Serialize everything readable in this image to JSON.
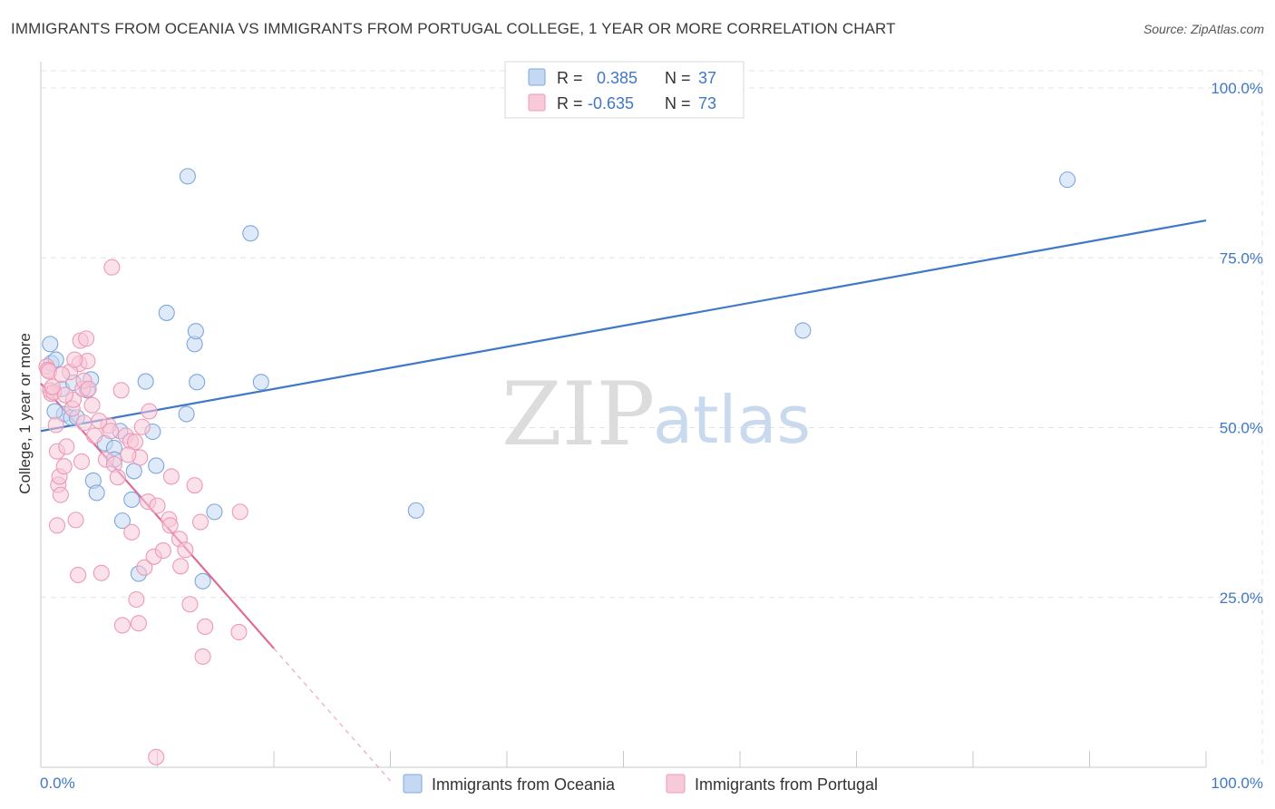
{
  "title": "IMMIGRANTS FROM OCEANIA VS IMMIGRANTS FROM PORTUGAL COLLEGE, 1 YEAR OR MORE CORRELATION CHART",
  "source": "Source: ZipAtlas.com",
  "watermark": {
    "zip": "ZIP",
    "atlas": "atlas"
  },
  "colors": {
    "blue": "#3f78c6",
    "blue_fill": "#c5d8f3",
    "blue_stroke": "#7ea6dc",
    "pink": "#e06a95",
    "pink_fill": "#f8c9d8",
    "pink_stroke": "#ec9ab6",
    "grid": "#e3e3e3"
  },
  "legend": {
    "rows": [
      {
        "r_label": "R =",
        "r_value": "0.385",
        "n_label": "N =",
        "n_value": "37"
      },
      {
        "r_label": "R =",
        "r_value": "-0.635",
        "n_label": "N =",
        "n_value": "73"
      }
    ]
  },
  "chart_data": {
    "type": "scatter",
    "title": "IMMIGRANTS FROM OCEANIA VS IMMIGRANTS FROM PORTUGAL COLLEGE, 1 YEAR OR MORE CORRELATION CHART",
    "xlabel": "",
    "ylabel": "College, 1 year or more",
    "xlim": [
      0,
      100
    ],
    "ylim": [
      0,
      100
    ],
    "x_tick_labels": [
      "0.0%",
      "100.0%"
    ],
    "y_ticks": [
      25,
      50,
      75,
      100
    ],
    "y_tick_labels": [
      "25.0%",
      "50.0%",
      "75.0%",
      "100.0%"
    ],
    "series": [
      {
        "name": "Immigrants from Oceania",
        "color": "blue",
        "points": [
          [
            0.8,
            62.3
          ],
          [
            0.9,
            59.5
          ],
          [
            1.3,
            60.0
          ],
          [
            1.8,
            55.7
          ],
          [
            2.0,
            52.0
          ],
          [
            2.6,
            51.5
          ],
          [
            3.1,
            51.5
          ],
          [
            4.0,
            55.5
          ],
          [
            4.3,
            57.1
          ],
          [
            4.5,
            42.2
          ],
          [
            4.8,
            40.4
          ],
          [
            5.5,
            47.7
          ],
          [
            6.3,
            47.0
          ],
          [
            6.3,
            45.3
          ],
          [
            6.8,
            49.5
          ],
          [
            7.0,
            36.3
          ],
          [
            7.8,
            39.4
          ],
          [
            8.0,
            43.6
          ],
          [
            8.4,
            28.5
          ],
          [
            9.0,
            56.8
          ],
          [
            9.6,
            49.4
          ],
          [
            9.9,
            44.4
          ],
          [
            10.8,
            66.9
          ],
          [
            12.6,
            87.0
          ],
          [
            12.5,
            52.0
          ],
          [
            13.2,
            62.3
          ],
          [
            13.3,
            64.2
          ],
          [
            13.4,
            56.7
          ],
          [
            13.9,
            27.4
          ],
          [
            14.9,
            37.6
          ],
          [
            18.0,
            78.6
          ],
          [
            18.9,
            56.7
          ],
          [
            32.2,
            37.8
          ],
          [
            65.4,
            64.3
          ],
          [
            88.1,
            86.5
          ],
          [
            2.8,
            56.6
          ],
          [
            1.2,
            52.4
          ]
        ],
        "trend": {
          "x": [
            0,
            100
          ],
          "y": [
            49.5,
            80.5
          ],
          "style": "solid"
        }
      },
      {
        "name": "Immigrants from Portugal",
        "color": "pink",
        "points": [
          [
            0.5,
            59.0
          ],
          [
            0.6,
            58.5
          ],
          [
            0.7,
            58.3
          ],
          [
            0.8,
            55.5
          ],
          [
            0.9,
            55.0
          ],
          [
            1.1,
            55.2
          ],
          [
            1.3,
            50.4
          ],
          [
            1.4,
            46.5
          ],
          [
            1.4,
            35.6
          ],
          [
            1.5,
            41.6
          ],
          [
            1.6,
            42.8
          ],
          [
            1.7,
            40.1
          ],
          [
            2.0,
            44.3
          ],
          [
            2.2,
            47.2
          ],
          [
            2.7,
            52.8
          ],
          [
            2.8,
            54.1
          ],
          [
            3.0,
            36.4
          ],
          [
            3.2,
            28.3
          ],
          [
            3.3,
            59.4
          ],
          [
            3.4,
            62.8
          ],
          [
            3.6,
            55.7
          ],
          [
            3.7,
            56.9
          ],
          [
            3.7,
            50.7
          ],
          [
            3.9,
            63.1
          ],
          [
            4.0,
            59.8
          ],
          [
            4.1,
            55.7
          ],
          [
            4.6,
            48.8
          ],
          [
            5.2,
            28.6
          ],
          [
            5.6,
            45.3
          ],
          [
            5.8,
            50.3
          ],
          [
            6.1,
            73.6
          ],
          [
            6.3,
            44.6
          ],
          [
            6.6,
            42.7
          ],
          [
            6.9,
            55.5
          ],
          [
            7.0,
            20.9
          ],
          [
            7.3,
            48.8
          ],
          [
            7.7,
            48.0
          ],
          [
            7.8,
            34.6
          ],
          [
            8.1,
            47.9
          ],
          [
            8.2,
            24.7
          ],
          [
            8.4,
            21.2
          ],
          [
            8.5,
            45.6
          ],
          [
            8.7,
            50.1
          ],
          [
            8.9,
            29.4
          ],
          [
            9.2,
            39.1
          ],
          [
            9.7,
            31.0
          ],
          [
            9.9,
            1.5
          ],
          [
            10.5,
            31.9
          ],
          [
            11.0,
            36.5
          ],
          [
            11.1,
            35.6
          ],
          [
            11.2,
            42.8
          ],
          [
            11.9,
            33.6
          ],
          [
            12.0,
            29.6
          ],
          [
            12.4,
            32.0
          ],
          [
            13.2,
            41.5
          ],
          [
            13.7,
            36.1
          ],
          [
            13.9,
            16.3
          ],
          [
            14.1,
            20.7
          ],
          [
            17.0,
            19.9
          ],
          [
            17.1,
            37.6
          ],
          [
            1.0,
            56.0
          ],
          [
            2.1,
            54.8
          ],
          [
            2.5,
            58.2
          ],
          [
            5.0,
            51.0
          ],
          [
            3.5,
            45.0
          ],
          [
            6.0,
            49.5
          ],
          [
            4.4,
            53.3
          ],
          [
            7.5,
            46.0
          ],
          [
            2.9,
            60.0
          ],
          [
            1.8,
            57.8
          ],
          [
            9.3,
            52.4
          ],
          [
            10.0,
            38.5
          ],
          [
            12.8,
            24.0
          ]
        ],
        "trend": {
          "x": [
            0,
            20.0
          ],
          "y": [
            56.5,
            17.5
          ],
          "style": "solid",
          "dashed_extension": {
            "x": [
              20.0,
              30.0
            ],
            "y": [
              17.5,
              -2.0
            ]
          }
        }
      }
    ]
  },
  "bottom_legend": [
    {
      "label": "Immigrants from Oceania"
    },
    {
      "label": "Immigrants from Portugal"
    }
  ]
}
